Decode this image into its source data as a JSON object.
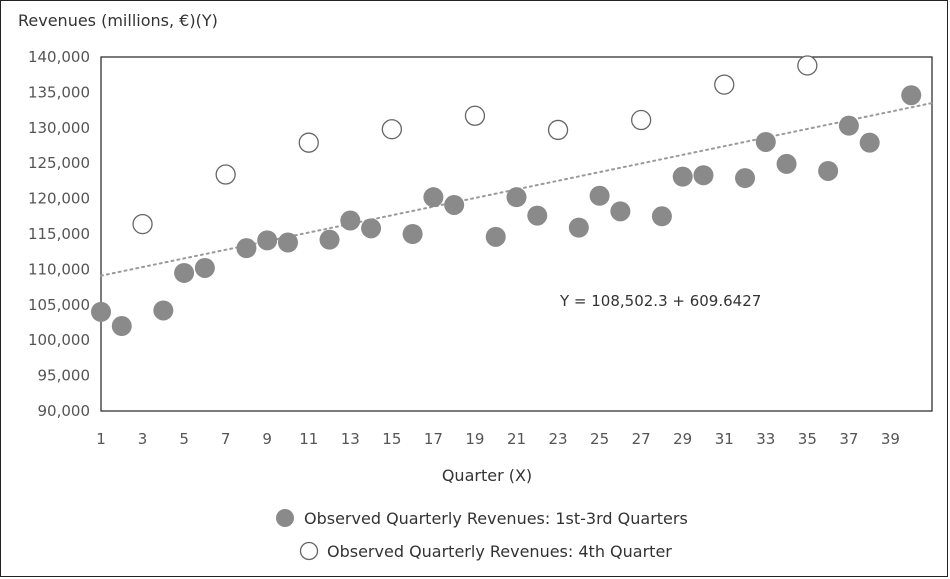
{
  "chart_data": {
    "type": "scatter",
    "ylabel": "Revenues (millions, €)(Y)",
    "xlabel": "Quarter (X)",
    "ylim": [
      90000,
      140000
    ],
    "xlim": [
      1,
      41
    ],
    "yticks": [
      90000,
      95000,
      100000,
      105000,
      110000,
      115000,
      120000,
      125000,
      130000,
      135000,
      140000
    ],
    "ytick_labels": [
      "90,000",
      "95,000",
      "100,000",
      "105,000",
      "110,000",
      "115,000",
      "120,000",
      "125,000",
      "130,000",
      "135,000",
      "140,000"
    ],
    "xticks": [
      1,
      3,
      5,
      7,
      9,
      11,
      13,
      15,
      17,
      19,
      21,
      23,
      25,
      27,
      29,
      31,
      33,
      35,
      37,
      39
    ],
    "xtick_labels": [
      "1",
      "3",
      "5",
      "7",
      "9",
      "11",
      "13",
      "15",
      "17",
      "19",
      "21",
      "23",
      "25",
      "27",
      "29",
      "31",
      "33",
      "35",
      "37",
      "39"
    ],
    "series": [
      {
        "name": "Observed Quarterly Revenues: 1st-3rd Quarters",
        "marker": "filled",
        "color": "#8a8a8a",
        "points": [
          {
            "x": 1,
            "y": 104000
          },
          {
            "x": 2,
            "y": 102000
          },
          {
            "x": 4,
            "y": 104200
          },
          {
            "x": 5,
            "y": 109500
          },
          {
            "x": 6,
            "y": 110200
          },
          {
            "x": 8,
            "y": 113000
          },
          {
            "x": 9,
            "y": 114100
          },
          {
            "x": 10,
            "y": 113800
          },
          {
            "x": 12,
            "y": 114200
          },
          {
            "x": 13,
            "y": 116900
          },
          {
            "x": 14,
            "y": 115800
          },
          {
            "x": 16,
            "y": 115000
          },
          {
            "x": 17,
            "y": 120200
          },
          {
            "x": 18,
            "y": 119100
          },
          {
            "x": 20,
            "y": 114600
          },
          {
            "x": 21,
            "y": 120200
          },
          {
            "x": 22,
            "y": 117600
          },
          {
            "x": 24,
            "y": 115900
          },
          {
            "x": 25,
            "y": 120400
          },
          {
            "x": 26,
            "y": 118200
          },
          {
            "x": 28,
            "y": 117500
          },
          {
            "x": 29,
            "y": 123100
          },
          {
            "x": 30,
            "y": 123300
          },
          {
            "x": 32,
            "y": 122900
          },
          {
            "x": 33,
            "y": 128000
          },
          {
            "x": 34,
            "y": 124900
          },
          {
            "x": 36,
            "y": 123900
          },
          {
            "x": 37,
            "y": 130300
          },
          {
            "x": 38,
            "y": 127900
          },
          {
            "x": 40,
            "y": 134600
          }
        ]
      },
      {
        "name": "Observed Quarterly Revenues: 4th Quarter",
        "marker": "hollow",
        "color": "#ffffff",
        "points": [
          {
            "x": 3,
            "y": 116400
          },
          {
            "x": 7,
            "y": 123400
          },
          {
            "x": 11,
            "y": 127900
          },
          {
            "x": 15,
            "y": 129800
          },
          {
            "x": 19,
            "y": 131700
          },
          {
            "x": 23,
            "y": 129700
          },
          {
            "x": 27,
            "y": 131100
          },
          {
            "x": 31,
            "y": 136100
          },
          {
            "x": 35,
            "y": 138800
          }
        ]
      }
    ],
    "trendline": {
      "style": "dotted",
      "intercept": 108502.3,
      "slope": 609.6427,
      "label": "Y = 108,502.3 + 609.6427",
      "label_anchor": {
        "x": 23,
        "y": 105000
      }
    },
    "legend": [
      {
        "label": "Observed Quarterly Revenues: 1st-3rd Quarters",
        "marker": "filled"
      },
      {
        "label": "Observed Quarterly Revenues: 4th Quarter",
        "marker": "hollow"
      }
    ],
    "legend_position": "bottom-center"
  }
}
